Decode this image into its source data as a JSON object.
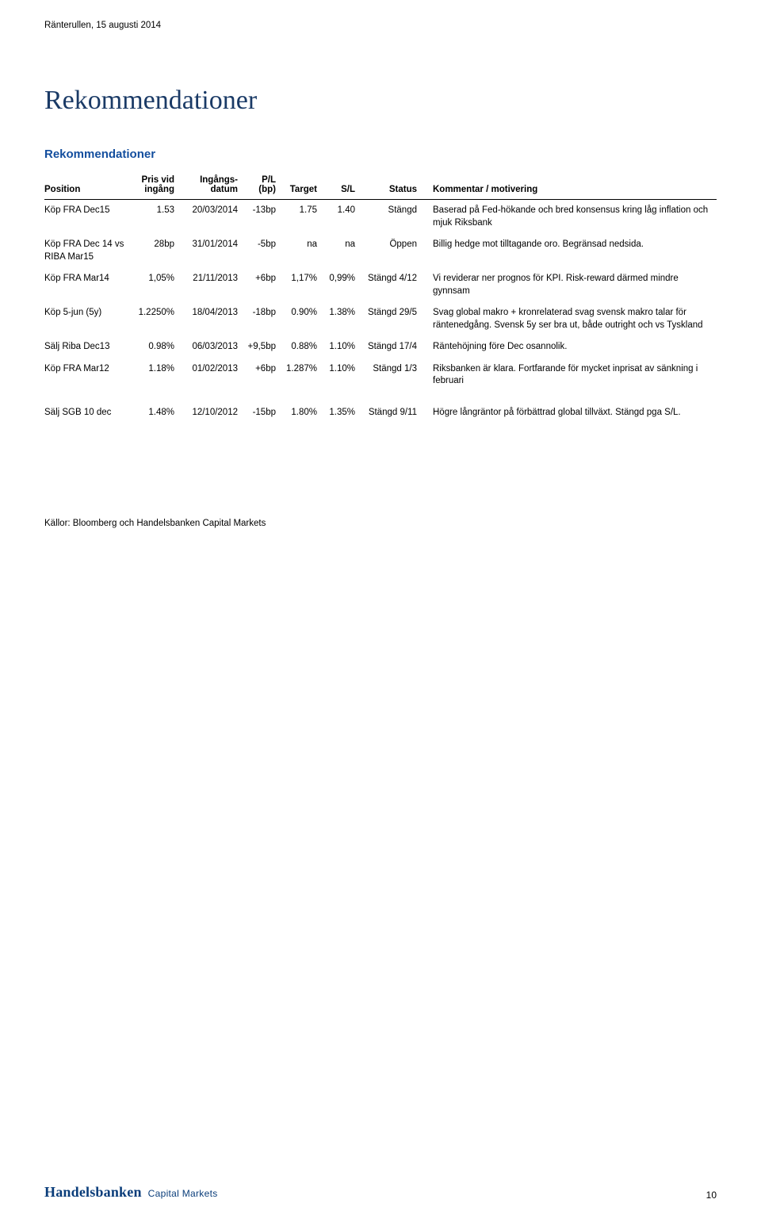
{
  "colors": {
    "title_color": "#1a3a66",
    "section_title_color": "#134e9e",
    "brand_color": "#0a3d7a",
    "text_color": "#000000",
    "background_color": "#ffffff",
    "header_border_color": "#000000"
  },
  "typography": {
    "title_font": "serif",
    "title_size_pt": 26,
    "section_title_size_pt": 11,
    "body_size_pt": 9,
    "brand_main_size_pt": 14,
    "brand_sub_size_pt": 9
  },
  "header": {
    "doc_meta": "Ränterullen, 15 augusti 2014",
    "title": "Rekommendationer"
  },
  "section": {
    "title": "Rekommendationer"
  },
  "table": {
    "columns": {
      "position": {
        "label_line1": "",
        "label_line2": "Position"
      },
      "pris": {
        "label_line1": "Pris vid",
        "label_line2": "ingång"
      },
      "datum": {
        "label_line1": "Ingångs-",
        "label_line2": "datum"
      },
      "pl": {
        "label_line1": "P/L",
        "label_line2": "(bp)"
      },
      "target": {
        "label_line1": "",
        "label_line2": "Target"
      },
      "sl": {
        "label_line1": "",
        "label_line2": "S/L"
      },
      "status": {
        "label_line1": "",
        "label_line2": "Status"
      },
      "comment": {
        "label_line1": "",
        "label_line2": "Kommentar / motivering"
      }
    },
    "rows": [
      {
        "position": "Köp FRA Dec15",
        "pris": "1.53",
        "datum": "20/03/2014",
        "pl": "-13bp",
        "target": "1.75",
        "sl": "1.40",
        "status": "Stängd",
        "comment": "Baserad på Fed-hökande och bred konsensus kring låg inflation och mjuk Riksbank"
      },
      {
        "position": "Köp FRA Dec 14 vs RIBA Mar15",
        "pris": "28bp",
        "datum": "31/01/2014",
        "pl": "-5bp",
        "target": "na",
        "sl": "na",
        "status": "Öppen",
        "comment": "Billig hedge mot tilltagande oro. Begränsad nedsida."
      },
      {
        "position": "Köp FRA Mar14",
        "pris": "1,05%",
        "datum": "21/11/2013",
        "pl": "+6bp",
        "target": "1,17%",
        "sl": "0,99%",
        "status": "Stängd 4/12",
        "comment": "Vi reviderar ner prognos för KPI. Risk-reward därmed mindre gynnsam"
      },
      {
        "position": "Köp 5-jun (5y)",
        "pris": "1.2250%",
        "datum": "18/04/2013",
        "pl": "-18bp",
        "target": "0.90%",
        "sl": "1.38%",
        "status": "Stängd 29/5",
        "comment": "Svag global makro + kronrelaterad svag svensk makro talar för räntenedgång. Svensk 5y ser bra ut, både outright och vs Tyskland"
      },
      {
        "position": "Sälj Riba Dec13",
        "pris": "0.98%",
        "datum": "06/03/2013",
        "pl": "+9,5bp",
        "target": "0.88%",
        "sl": "1.10%",
        "status": "Stängd 17/4",
        "comment": "Räntehöjning före Dec osannolik."
      },
      {
        "position": "Köp FRA Mar12",
        "pris": "1.18%",
        "datum": "01/02/2013",
        "pl": "+6bp",
        "target": "1.287%",
        "sl": "1.10%",
        "status": "Stängd 1/3",
        "comment": "Riksbanken är klara. Fortfarande för mycket inprisat av sänkning i februari"
      },
      {
        "position": "Sälj SGB 10 dec",
        "pris": "1.48%",
        "datum": "12/10/2012",
        "pl": "-15bp",
        "target": "1.80%",
        "sl": "1.35%",
        "status": "Stängd 9/11",
        "comment": "Högre långräntor på förbättrad global tillväxt. Stängd pga S/L.",
        "gap_before": true
      }
    ]
  },
  "sources": "Källor: Bloomberg och Handelsbanken Capital Markets",
  "footer": {
    "brand_main": "Handelsbanken",
    "brand_sub": "Capital Markets",
    "page_number": "10"
  }
}
